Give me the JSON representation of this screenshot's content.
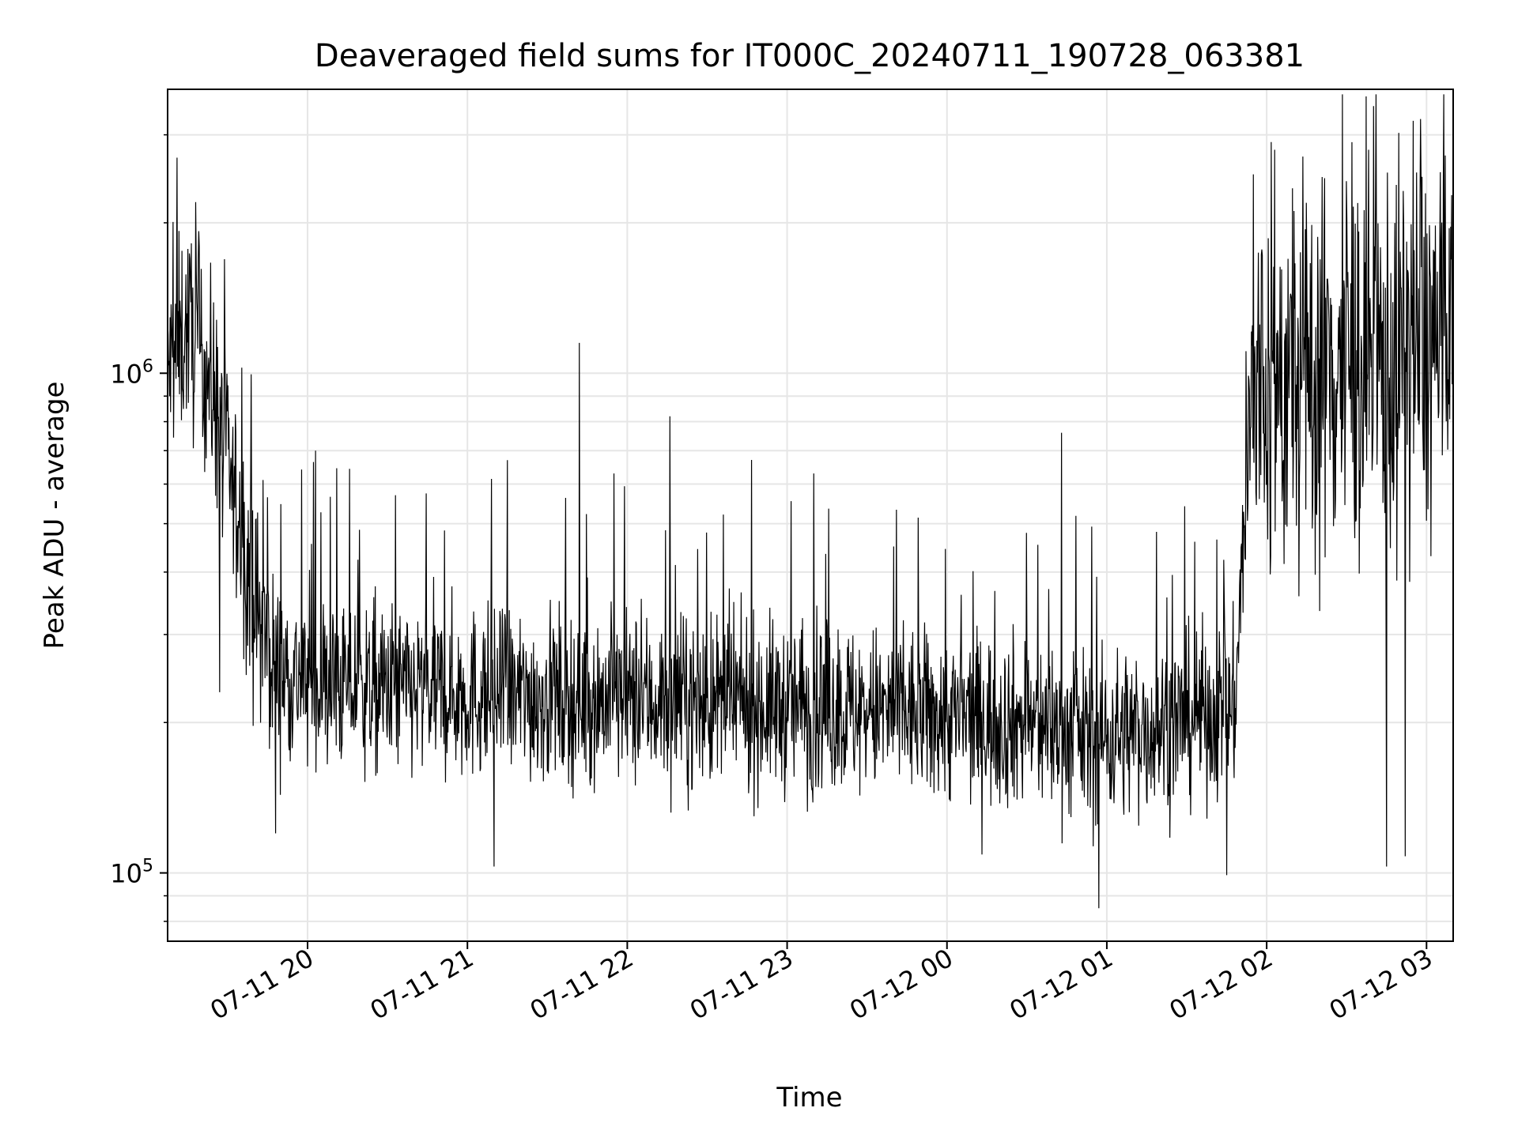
{
  "chart_data": {
    "type": "line",
    "title": "Deaveraged field sums for IT000C_20240711_190728_063381",
    "xlabel": "Time",
    "ylabel": "Peak ADU - average",
    "y_scale": "log",
    "ylim": [
      73000,
      3700000
    ],
    "xlim": [
      "2024-07-11 19:07:28",
      "2024-07-12 03:10:00"
    ],
    "grid": true,
    "legend": "none",
    "line_color": "#000000",
    "x_ticks": [
      {
        "time": "2024-07-11 20:00",
        "label": "07-11 20"
      },
      {
        "time": "2024-07-11 21:00",
        "label": "07-11 21"
      },
      {
        "time": "2024-07-11 22:00",
        "label": "07-11 22"
      },
      {
        "time": "2024-07-11 23:00",
        "label": "07-11 23"
      },
      {
        "time": "2024-07-12 00:00",
        "label": "07-12 00"
      },
      {
        "time": "2024-07-12 01:00",
        "label": "07-12 01"
      },
      {
        "time": "2024-07-12 02:00",
        "label": "07-12 02"
      },
      {
        "time": "2024-07-12 03:00",
        "label": "07-12 03"
      }
    ],
    "y_major_ticks": [
      {
        "value": 100000,
        "base": "10",
        "exp": "5"
      },
      {
        "value": 1000000,
        "base": "10",
        "exp": "6"
      }
    ],
    "series": [
      {
        "values": [
          [
            "2024-07-11 19:07:28",
            1000000
          ],
          [
            "2024-07-11 19:15:00",
            1250000
          ],
          [
            "2024-07-11 19:20:00",
            1100000
          ],
          [
            "2024-07-11 19:25:00",
            900000
          ],
          [
            "2024-07-11 19:30:00",
            650000
          ],
          [
            "2024-07-11 19:35:00",
            480000
          ],
          [
            "2024-07-11 19:40:00",
            350000
          ],
          [
            "2024-07-11 19:45:00",
            280000
          ],
          [
            "2024-07-11 19:50:00",
            255000
          ],
          [
            "2024-07-11 20:00:00",
            240000
          ],
          [
            "2024-07-11 20:30:00",
            232000
          ],
          [
            "2024-07-11 21:00:00",
            228000
          ],
          [
            "2024-07-11 21:30:00",
            225000
          ],
          [
            "2024-07-11 22:00:00",
            222000
          ],
          [
            "2024-07-11 22:30:00",
            218000
          ],
          [
            "2024-07-11 23:00:00",
            215000
          ],
          [
            "2024-07-11 23:30:00",
            210000
          ],
          [
            "2024-07-12 00:00:00",
            205000
          ],
          [
            "2024-07-12 00:30:00",
            200000
          ],
          [
            "2024-07-12 00:55:00",
            185000
          ],
          [
            "2024-07-12 01:15:00",
            195000
          ],
          [
            "2024-07-12 01:35:00",
            205000
          ],
          [
            "2024-07-12 01:48:00",
            215000
          ],
          [
            "2024-07-12 01:52:00",
            550000
          ],
          [
            "2024-07-12 01:55:00",
            900000
          ],
          [
            "2024-07-12 02:10:00",
            950000
          ],
          [
            "2024-07-12 02:30:00",
            1050000
          ],
          [
            "2024-07-12 02:45:00",
            1000000
          ],
          [
            "2024-07-12 03:00:00",
            1150000
          ],
          [
            "2024-07-12 03:10:00",
            1100000
          ]
        ],
        "spikes": [
          [
            "2024-07-11 19:11:00",
            2700000
          ],
          [
            "2024-07-11 19:18:00",
            2200000
          ],
          [
            "2024-07-11 19:27:00",
            1550000
          ],
          [
            "2024-07-11 20:03:00",
            700000
          ],
          [
            "2024-07-11 20:33:00",
            570000
          ],
          [
            "2024-07-11 21:15:00",
            670000
          ],
          [
            "2024-07-11 21:42:00",
            1150000
          ],
          [
            "2024-07-11 21:55:00",
            630000
          ],
          [
            "2024-07-11 22:16:00",
            820000
          ],
          [
            "2024-07-11 23:10:00",
            630000
          ],
          [
            "2024-07-11 23:40:00",
            450000
          ],
          [
            "2024-07-12 00:43:00",
            760000
          ],
          [
            "2024-07-12 01:33:00",
            460000
          ],
          [
            "2024-07-12 01:55:00",
            2500000
          ],
          [
            "2024-07-12 02:03:00",
            2800000
          ],
          [
            "2024-07-12 02:32:00",
            2900000
          ],
          [
            "2024-07-12 02:55:00",
            3200000
          ],
          [
            "2024-07-12 02:58:00",
            2300000
          ],
          [
            "2024-07-11 19:27:00",
            230000
          ],
          [
            "2024-07-11 19:48:00",
            120000
          ],
          [
            "2024-07-11 21:10:00",
            103000
          ],
          [
            "2024-07-12 00:57:00",
            85000
          ],
          [
            "2024-07-12 01:45:00",
            99000
          ],
          [
            "2024-07-12 02:45:00",
            103000
          ],
          [
            "2024-07-12 02:52:00",
            108000
          ]
        ]
      }
    ]
  }
}
